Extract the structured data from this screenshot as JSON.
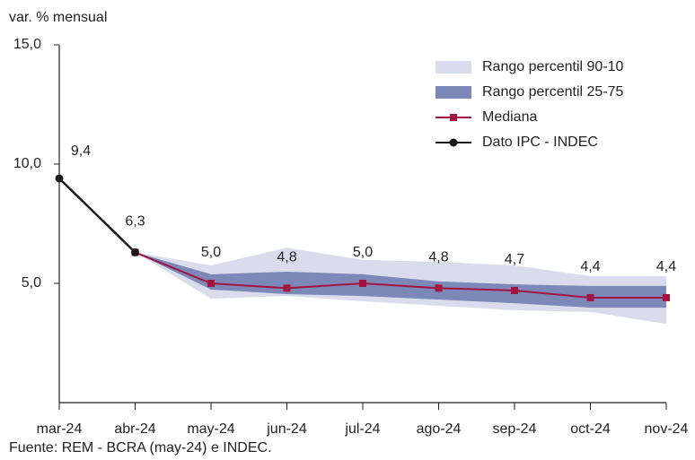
{
  "chart_data": {
    "type": "line",
    "y_label": "var. % mensual",
    "source": "Fuente: REM - BCRA (may-24) e INDEC.",
    "categories": [
      "mar-24",
      "abr-24",
      "may-24",
      "jun-24",
      "jul-24",
      "ago-24",
      "sep-24",
      "oct-24",
      "nov-24"
    ],
    "ylim": [
      0,
      15
    ],
    "yticks": [
      {
        "value": 5,
        "label": "5,0"
      },
      {
        "value": 10,
        "label": "10,0"
      },
      {
        "value": 15,
        "label": "15,0"
      }
    ],
    "legend": "top-right",
    "series": [
      {
        "name": "Rango percentil 90-10",
        "type": "band",
        "color": "#d9dcec",
        "upper": [
          null,
          6.3,
          5.75,
          6.5,
          5.98,
          5.9,
          5.75,
          5.3,
          5.3
        ],
        "lower": [
          null,
          6.3,
          4.36,
          4.47,
          4.25,
          4.06,
          3.87,
          3.8,
          3.3
        ]
      },
      {
        "name": "Rango percentil 25-75",
        "type": "band",
        "color": "#7b88b8",
        "upper": [
          null,
          6.3,
          5.38,
          5.49,
          5.38,
          5.08,
          4.96,
          4.89,
          4.89
        ],
        "lower": [
          null,
          6.3,
          4.74,
          4.55,
          4.47,
          4.32,
          4.17,
          3.98,
          3.98
        ]
      },
      {
        "name": "Mediana",
        "type": "line",
        "marker": "square",
        "color": "#a3133f",
        "values": [
          null,
          6.3,
          5.0,
          4.8,
          5.0,
          4.8,
          4.7,
          4.4,
          4.4
        ],
        "value_labels": [
          null,
          null,
          "5,0",
          "4,8",
          "5,0",
          "4,8",
          "4,7",
          "4,4",
          "4,4"
        ]
      },
      {
        "name": "Dato IPC - INDEC",
        "type": "line",
        "marker": "circle",
        "color": "#1a1a1a",
        "values": [
          9.4,
          6.3,
          null,
          null,
          null,
          null,
          null,
          null,
          null
        ],
        "value_labels": [
          "9,4",
          "6,3",
          null,
          null,
          null,
          null,
          null,
          null,
          null
        ]
      }
    ]
  }
}
